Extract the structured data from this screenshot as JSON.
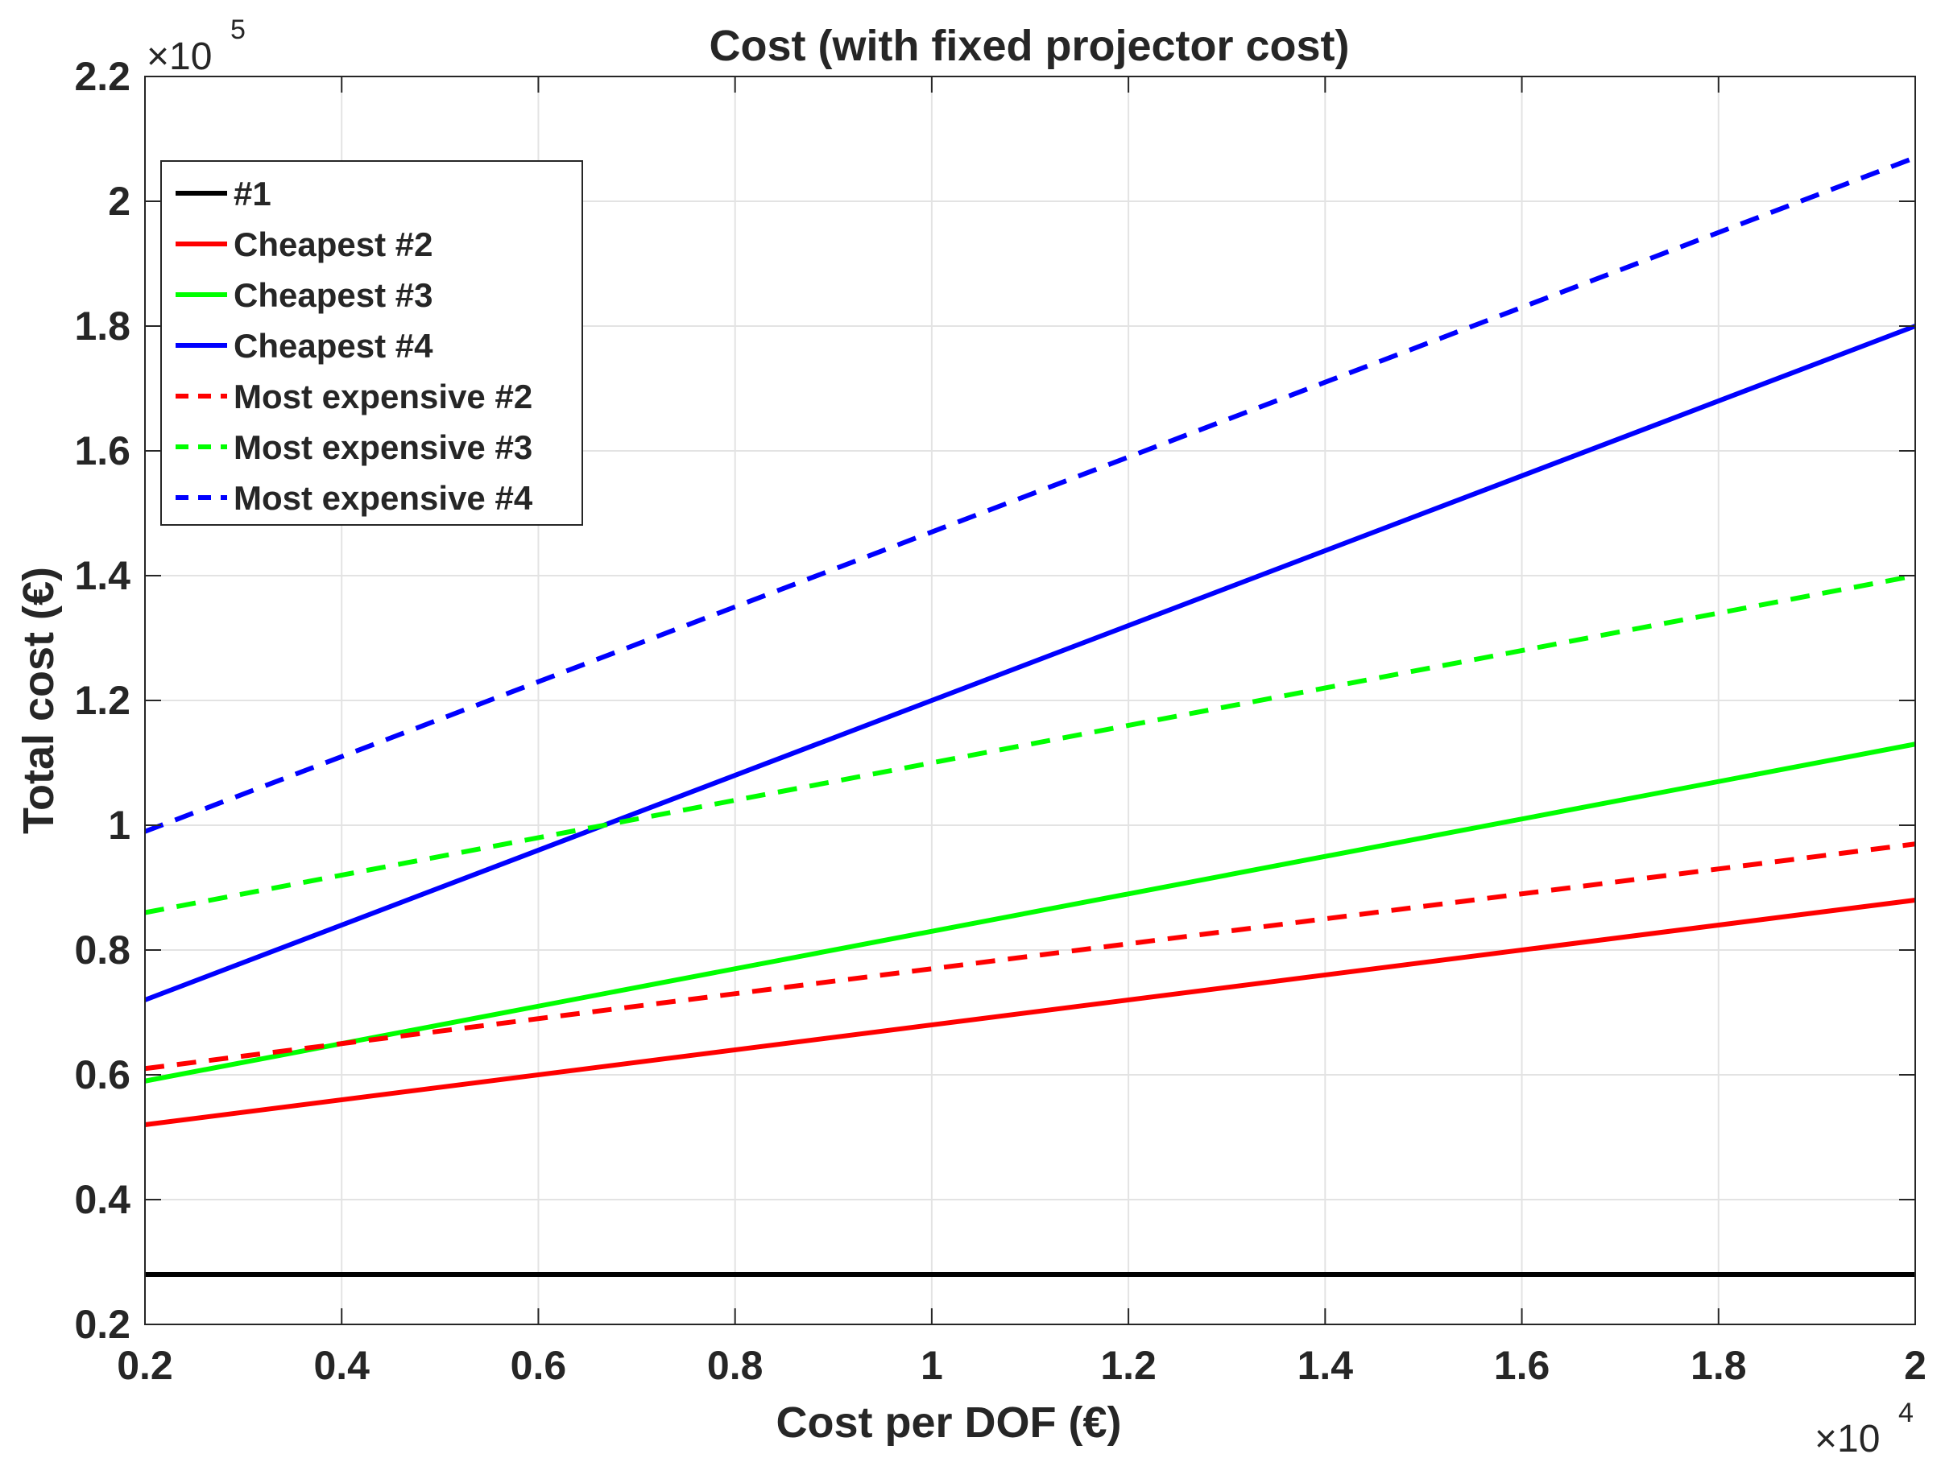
{
  "chart_data": {
    "type": "line",
    "title": "Cost (with fixed projector cost)",
    "xlabel": "Cost per DOF (€)",
    "ylabel": "Total cost (€)",
    "xlim": [
      0.2,
      2
    ],
    "ylim": [
      0.2,
      2.2
    ],
    "x_multiplier": {
      "base": "×10",
      "power": "4"
    },
    "y_multiplier": {
      "base": "×10",
      "power": "5"
    },
    "xticks": [
      "0.2",
      "0.4",
      "0.6",
      "0.8",
      "1",
      "1.2",
      "1.4",
      "1.6",
      "1.8",
      "2"
    ],
    "yticks": [
      "0.2",
      "0.4",
      "0.6",
      "0.8",
      "1",
      "1.2",
      "1.4",
      "1.6",
      "1.8",
      "2",
      "2.2"
    ],
    "xtick_values": [
      0.2,
      0.4,
      0.6,
      0.8,
      1.0,
      1.2,
      1.4,
      1.6,
      1.8,
      2.0
    ],
    "ytick_values": [
      0.2,
      0.4,
      0.6,
      0.8,
      1.0,
      1.2,
      1.4,
      1.6,
      1.8,
      2.0,
      2.2
    ],
    "grid": true,
    "legend_position": "top-left",
    "series": [
      {
        "name": "#1",
        "color": "#000000",
        "style": "solid",
        "x": [
          0.2,
          2
        ],
        "y": [
          0.28,
          0.28
        ]
      },
      {
        "name": "Cheapest #2",
        "color": "#ff0000",
        "style": "solid",
        "x": [
          0.2,
          2
        ],
        "y": [
          0.52,
          0.88
        ]
      },
      {
        "name": "Cheapest #3",
        "color": "#00ff00",
        "style": "solid",
        "x": [
          0.2,
          2
        ],
        "y": [
          0.59,
          1.13
        ]
      },
      {
        "name": "Cheapest #4",
        "color": "#0000ff",
        "style": "solid",
        "x": [
          0.2,
          2
        ],
        "y": [
          0.72,
          1.8
        ]
      },
      {
        "name": "Most expensive #2",
        "color": "#ff0000",
        "style": "dashed",
        "x": [
          0.2,
          2
        ],
        "y": [
          0.61,
          0.97
        ]
      },
      {
        "name": "Most expensive #3",
        "color": "#00ff00",
        "style": "dashed",
        "x": [
          0.2,
          2
        ],
        "y": [
          0.86,
          1.4
        ]
      },
      {
        "name": "Most expensive #4",
        "color": "#0000ff",
        "style": "dashed",
        "x": [
          0.2,
          2
        ],
        "y": [
          0.99,
          2.07
        ]
      }
    ]
  }
}
